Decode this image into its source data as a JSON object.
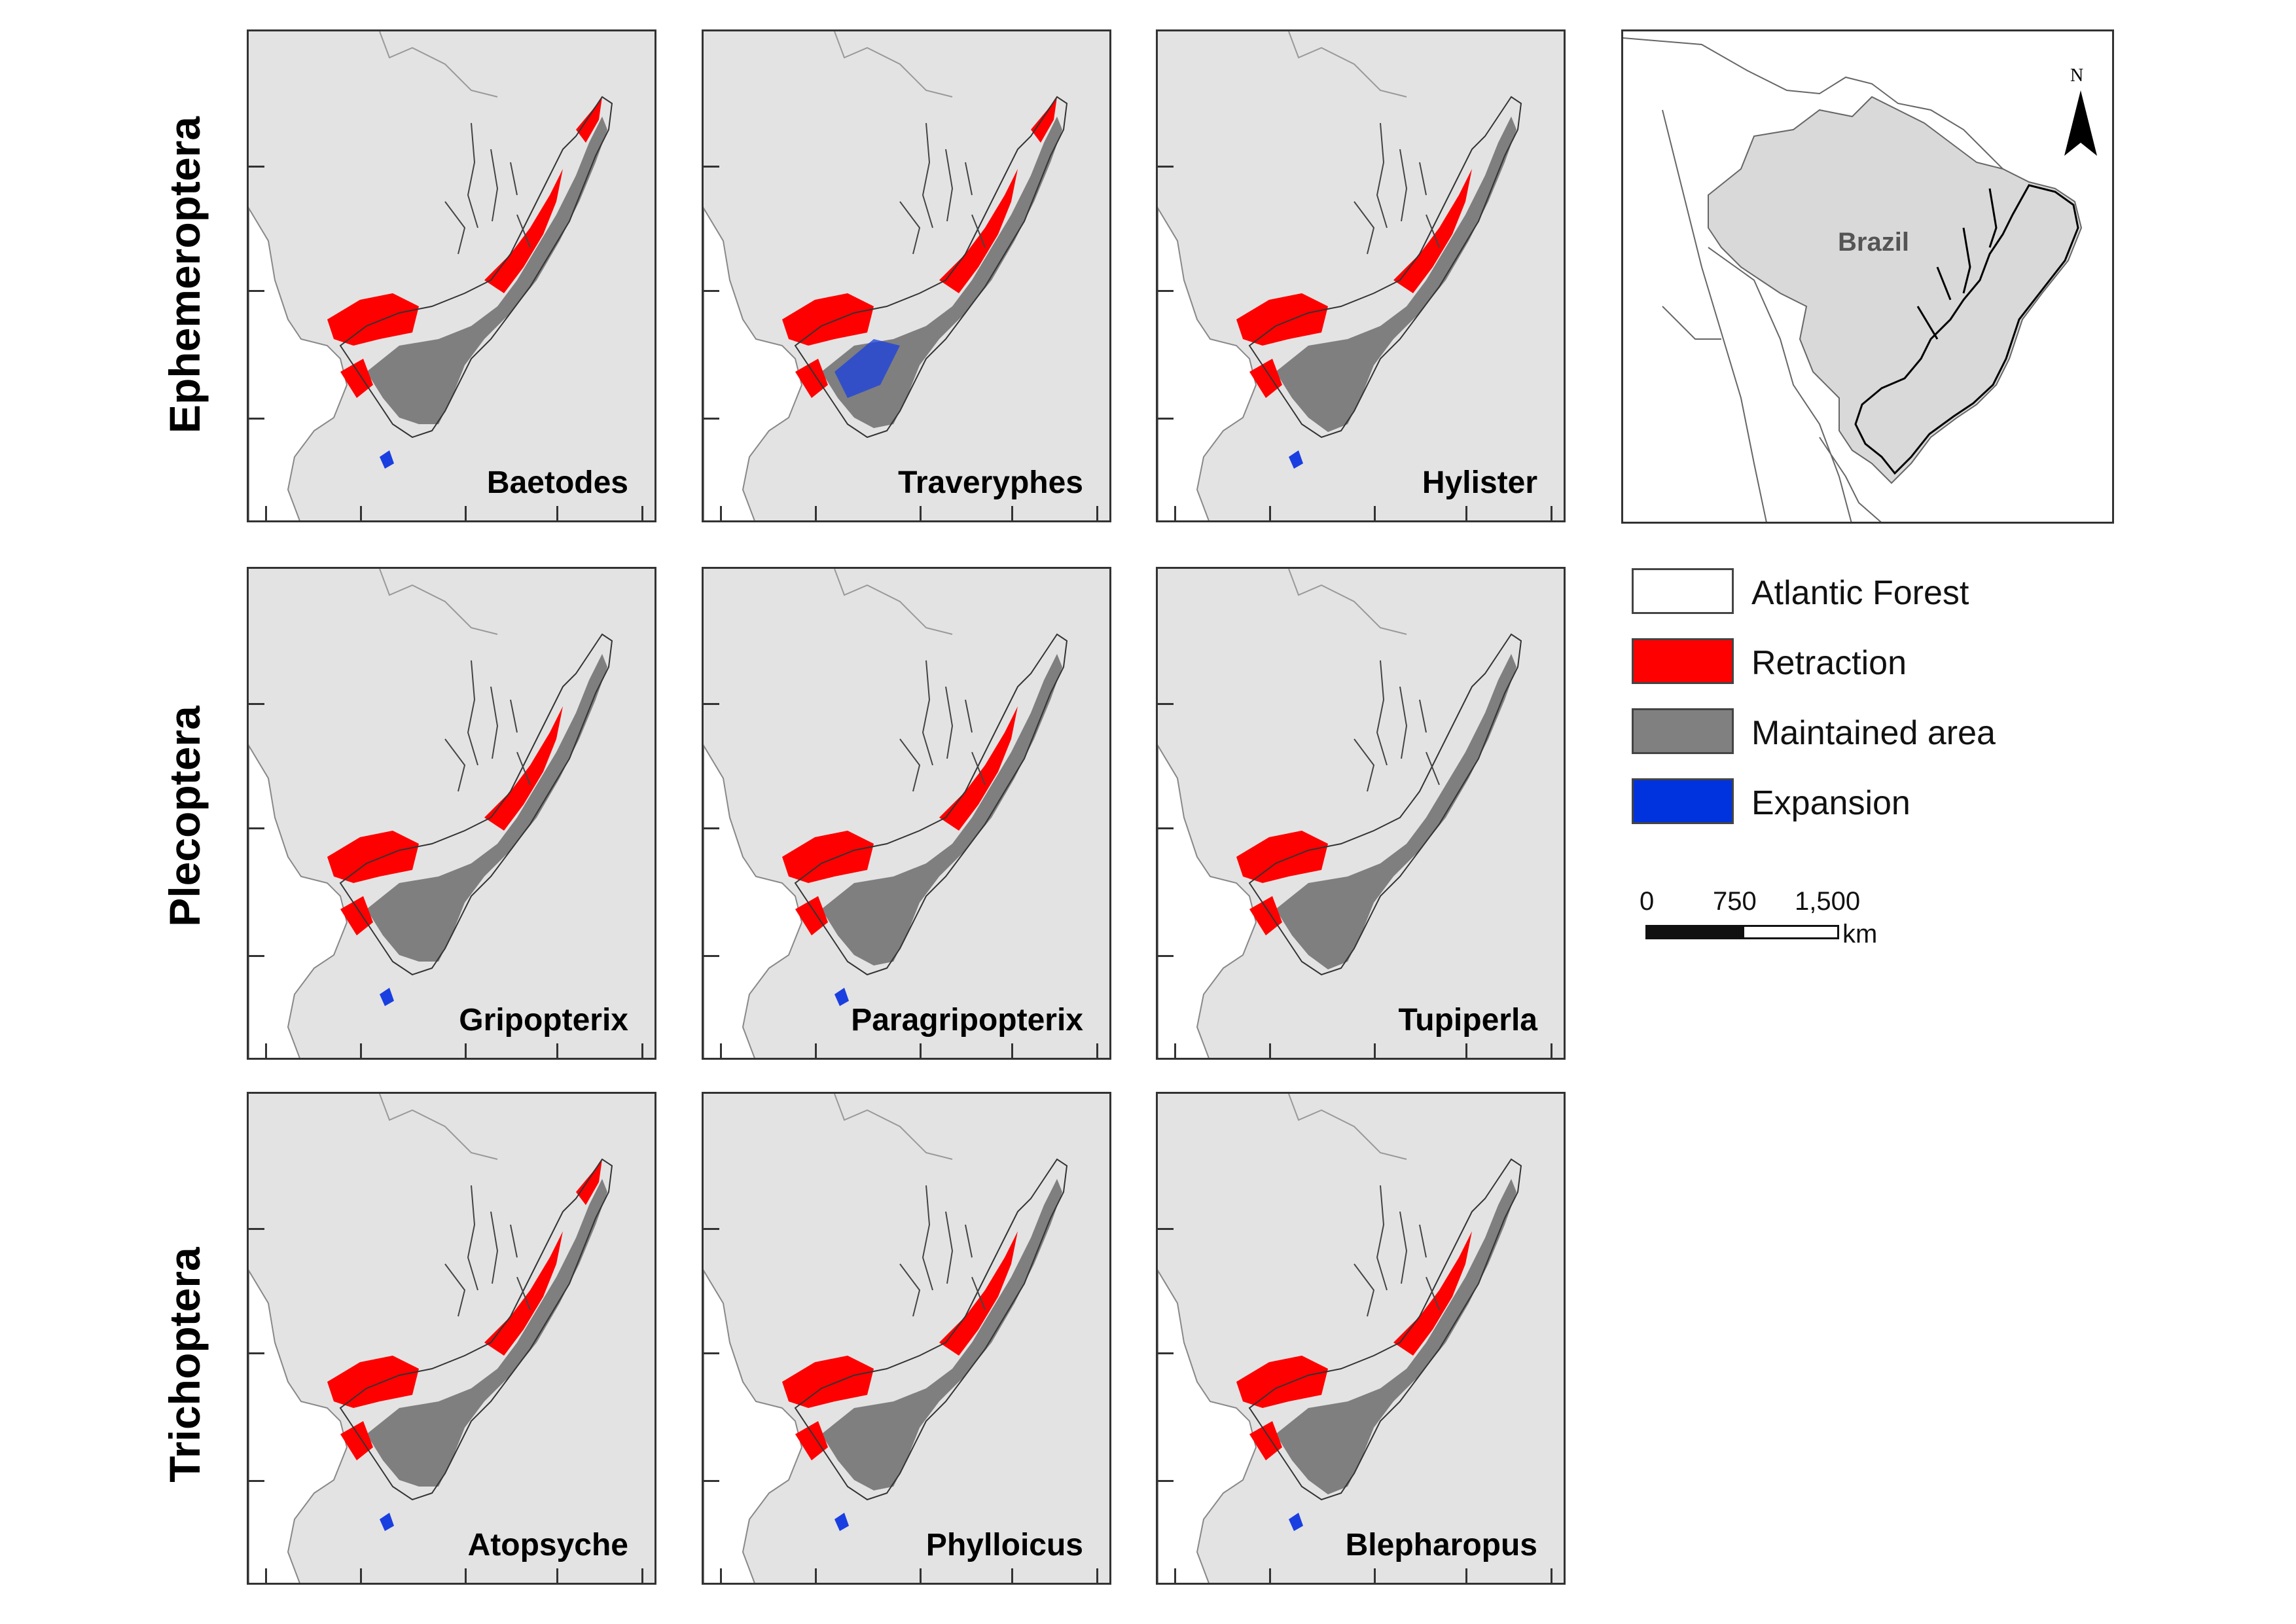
{
  "rows": [
    {
      "order": "Ephemeroptera",
      "genera": [
        "Baetodes",
        "Traveryphes",
        "Hylister"
      ]
    },
    {
      "order": "Plecoptera",
      "genera": [
        "Gripopterix",
        "Paragripopterix",
        "Tupiperla"
      ]
    },
    {
      "order": "Trichoptera",
      "genera": [
        "Atopsyche",
        "Phylloicus",
        "Blepharopus"
      ]
    }
  ],
  "inset": {
    "country_label": "Brazil",
    "north_label": "N"
  },
  "legend": [
    {
      "label": "Atlantic Forest",
      "color": "#ffffff"
    },
    {
      "label": "Retraction",
      "color": "#ff0000"
    },
    {
      "label": "Maintained area",
      "color": "#808080"
    },
    {
      "label": "Expansion",
      "color": "#0033dd"
    }
  ],
  "scale_bar": {
    "ticks": [
      "0",
      "750",
      "1,500"
    ],
    "unit": "km"
  },
  "colors": {
    "land": "#e3e3e3",
    "retraction": "#ff0000",
    "maintained": "#808080",
    "expansion": "#1a3fe0",
    "border": "#333333"
  }
}
